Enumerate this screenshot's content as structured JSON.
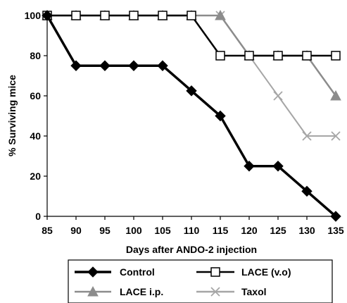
{
  "chart_data": {
    "type": "line",
    "xlabel": "Days after ANDO-2 injection",
    "ylabel": "% Surviving mice",
    "x": [
      85,
      90,
      95,
      100,
      105,
      110,
      115,
      120,
      125,
      130,
      135
    ],
    "xlim": [
      85,
      135
    ],
    "ylim": [
      0,
      100
    ],
    "yticks": [
      0,
      20,
      40,
      60,
      80,
      100
    ],
    "grid": false,
    "legend_position": "bottom",
    "series": [
      {
        "name": "Control",
        "marker": "diamond",
        "color": "#000000",
        "values": [
          100,
          75,
          75,
          75,
          75,
          62.5,
          50,
          25,
          25,
          12.5,
          0
        ]
      },
      {
        "name": "LACE (v.o)",
        "marker": "square-open",
        "color": "#000000",
        "values": [
          100,
          100,
          100,
          100,
          100,
          100,
          80,
          80,
          80,
          80,
          80
        ]
      },
      {
        "name": "LACE i.p.",
        "marker": "triangle",
        "color": "#8c8c8c",
        "values": [
          100,
          100,
          100,
          100,
          100,
          100,
          100,
          80,
          80,
          80,
          60
        ]
      },
      {
        "name": "Taxol",
        "marker": "x",
        "color": "#a6a6a6",
        "values": [
          100,
          100,
          100,
          100,
          100,
          100,
          100,
          80,
          60,
          40,
          40
        ]
      }
    ]
  }
}
